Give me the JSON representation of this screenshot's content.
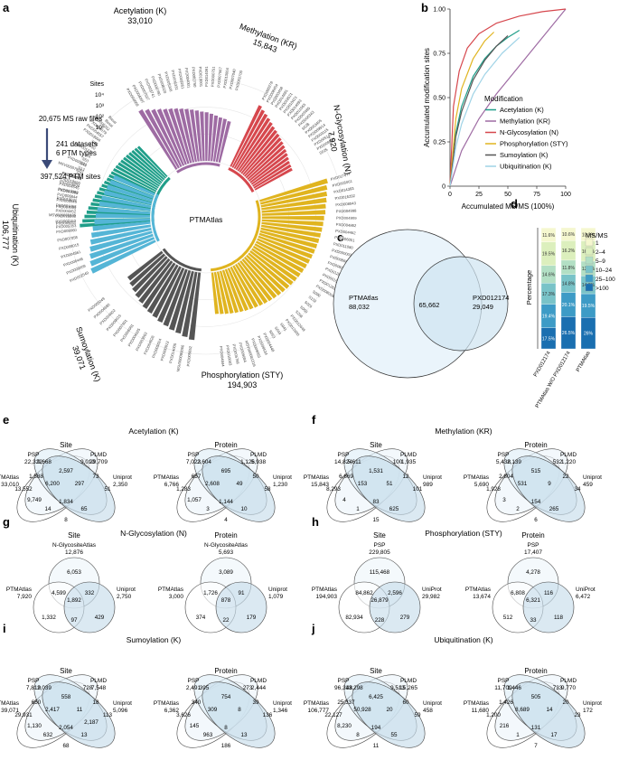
{
  "panel_labels": [
    "a",
    "b",
    "c",
    "d",
    "e",
    "f",
    "g",
    "h",
    "i",
    "j"
  ],
  "panel_a": {
    "center_label": "PTMAtlas",
    "flow": [
      "20,675 MS raw files",
      "241 datasets",
      "6 PTM types",
      "397,524 PTM sites"
    ],
    "sites_axis": {
      "label": "Sites",
      "ticks": [
        "10⁴",
        "10³",
        "10²",
        "10¹"
      ]
    },
    "groups": [
      {
        "name": "Acetylation (K)",
        "total": "33,010",
        "color": "#1f9e89",
        "datasets": [
          "PXD005353",
          "PXD002153",
          "PXD018868",
          "PXD004452",
          "PXD001058",
          "PXD004545",
          "PXD006844",
          "PXD013089",
          "PXD004545",
          "PXD018660",
          "PXD008009",
          "S30",
          "S17",
          "S43",
          "S53",
          "S24",
          "PXD001371",
          "S50",
          "S85",
          "PXD019994",
          "PXD004557",
          "PXD006079",
          "PXD005252",
          "Basal",
          "Basal"
        ],
        "heights": [
          1.0,
          0.96,
          0.93,
          0.9,
          0.88,
          0.85,
          0.83,
          0.81,
          0.79,
          0.77,
          0.75,
          0.73,
          0.71,
          0.7,
          0.69,
          0.68,
          0.67,
          0.66,
          0.65,
          0.64,
          0.63,
          0.62,
          0.61,
          0.6,
          0.59
        ]
      },
      {
        "name": "Methylation (KR)",
        "total": "15,843",
        "color": "#9e6ba3",
        "datasets": [
          "PXD004009",
          "PXD004007",
          "PXD007637",
          "PXD003741",
          "PXD000780",
          "PXD008020",
          "PXD005306",
          "PXD006331",
          "PXD009261",
          "PXD004001",
          "PXD002760",
          "PXD010001",
          "PXD014091",
          "PXD000751",
          "PXD007067",
          "PXD013004",
          "PXD007040",
          "PXD002700"
        ],
        "heights": [
          0.98,
          0.94,
          0.9,
          0.87,
          0.84,
          0.82,
          0.8,
          0.78,
          0.76,
          0.74,
          0.72,
          0.7,
          0.69,
          0.67,
          0.65,
          0.63,
          0.62,
          0.6
        ]
      },
      {
        "name": "N-Glycosylation (N)",
        "total": "7,920",
        "color": "#d6474d",
        "datasets": [
          "PXD000278",
          "PXD008454",
          "PXD003458",
          "PXD014691",
          "PXD019521",
          "PXD010421",
          "PXD014093",
          "PXD011565",
          "PXD003485",
          "PXD006343",
          "S028",
          "PXD003405",
          "PXD009914",
          "PXD003115",
          "PXD005143",
          "PXD009090",
          "S025"
        ],
        "heights": [
          0.96,
          0.92,
          0.89,
          0.86,
          0.83,
          0.8,
          0.78,
          0.76,
          0.74,
          0.72,
          0.7,
          0.68,
          0.66,
          0.64,
          0.62,
          0.61,
          0.6
        ]
      },
      {
        "name": "Phosphorylation (STY)",
        "total": "194,903",
        "color": "#e0b41f",
        "datasets": [
          "PXD017677",
          "PXD005061",
          "PXD014393",
          "PXD016292",
          "PXD008043",
          "PXD004998",
          "PXD004909",
          "PXD004862",
          "PXD004462",
          "PXD006051",
          "PXD011080",
          "PXD000003",
          "PXD008607",
          "PXD006006",
          "PXD012640",
          "PXD001550",
          "PXD012631",
          "PXD008004",
          "S090",
          "S132",
          "S024",
          "S050",
          "S204",
          "PXD012648",
          "PXD012600",
          "S041",
          "S044",
          "S053",
          "PXD004448",
          "PXD008534",
          "PXD009063",
          "MSV000081516",
          "PXD009084",
          "PXD005766",
          "PXD010003",
          "PXD004844"
        ],
        "heights": [
          1.0,
          0.97,
          0.95,
          0.93,
          0.91,
          0.9,
          0.88,
          0.87,
          0.86,
          0.85,
          0.84,
          0.83,
          0.82,
          0.81,
          0.8,
          0.79,
          0.78,
          0.77,
          0.76,
          0.75,
          0.74,
          0.73,
          0.72,
          0.71,
          0.7,
          0.69,
          0.68,
          0.67,
          0.66,
          0.65,
          0.64,
          0.63,
          0.62,
          0.61,
          0.6,
          0.59
        ]
      },
      {
        "name": "Sumoylation (K)",
        "total": "39,071",
        "color": "#555555",
        "datasets": [
          "PXD005652",
          "MSV000080066",
          "PXD014005",
          "PXD000913",
          "PXD005024",
          "PXD004826",
          "PXD003863",
          "PXD004925",
          "PXD006081",
          "PXD007901",
          "PXD009015",
          "PXD004602",
          "PXD004680",
          "PXD005049"
        ],
        "heights": [
          0.96,
          0.93,
          0.9,
          0.88,
          0.85,
          0.83,
          0.8,
          0.78,
          0.76,
          0.73,
          0.7,
          0.67,
          0.64,
          0.61
        ]
      },
      {
        "name": "Ubiquitination (K)",
        "total": "106,777",
        "color": "#54b5d6",
        "datasets": [
          "PXD002549",
          "PXD009009",
          "PXD006448",
          "PXD004861",
          "PXD008015",
          "PXD007058",
          "PXD008060",
          "PXD005011",
          "MSV000081936",
          "PXD007003",
          "PXD010031",
          "PXD007005",
          "PXD019834",
          "PXD011471",
          "MSV000079057",
          "PXD000201"
        ],
        "heights": [
          1.0,
          0.97,
          0.94,
          0.91,
          0.88,
          0.85,
          0.82,
          0.79,
          0.77,
          0.75,
          0.73,
          0.71,
          0.69,
          0.67,
          0.65,
          0.63
        ]
      }
    ]
  },
  "chart_data": [
    {
      "type": "line",
      "panel": "b",
      "xlabel": "Accumulated MS/MS (100%)",
      "ylabel": "Accumulated modification sites",
      "xlim": [
        0,
        100
      ],
      "ylim": [
        0,
        1.0
      ],
      "xticks": [
        "0",
        "25",
        "50",
        "75",
        "100"
      ],
      "yticks": [
        "0",
        "0.25",
        "0.50",
        "0.75",
        "1.00"
      ],
      "legend_title": "Modification",
      "legend_position": "center-right",
      "series": [
        {
          "name": "Acetylation (K)",
          "color": "#1f9e89",
          "x": [
            0,
            5,
            10,
            20,
            30,
            40,
            50,
            60
          ],
          "y": [
            0,
            0.3,
            0.45,
            0.62,
            0.72,
            0.79,
            0.84,
            0.88
          ]
        },
        {
          "name": "Methylation (KR)",
          "color": "#9e6ba3",
          "x": [
            0,
            10,
            25,
            40,
            55,
            70,
            85,
            100
          ],
          "y": [
            0,
            0.2,
            0.38,
            0.52,
            0.64,
            0.76,
            0.88,
            1.0
          ]
        },
        {
          "name": "N-Glycosylation (N)",
          "color": "#d6474d",
          "x": [
            0,
            3,
            8,
            15,
            25,
            40,
            60,
            80,
            100
          ],
          "y": [
            0,
            0.45,
            0.65,
            0.78,
            0.86,
            0.92,
            0.96,
            0.985,
            1.0
          ]
        },
        {
          "name": "Phosphorylation (STY)",
          "color": "#e0b41f",
          "x": [
            0,
            5,
            10,
            20,
            30,
            38
          ],
          "y": [
            0,
            0.38,
            0.55,
            0.72,
            0.82,
            0.87
          ]
        },
        {
          "name": "Sumoylation (K)",
          "color": "#555555",
          "x": [
            0,
            5,
            10,
            20,
            30,
            40,
            50
          ],
          "y": [
            0,
            0.28,
            0.42,
            0.6,
            0.71,
            0.79,
            0.85
          ]
        },
        {
          "name": "Ubiquitination (K)",
          "color": "#9fd3e6",
          "x": [
            0,
            5,
            10,
            20,
            30,
            45,
            60
          ],
          "y": [
            0,
            0.22,
            0.35,
            0.52,
            0.63,
            0.75,
            0.84
          ]
        }
      ]
    },
    {
      "type": "venn",
      "panel": "c",
      "sets": [
        "PTMAtlas",
        "PXD012174"
      ],
      "only_a": "88,032",
      "only_b": "29,049",
      "overlap": "65,662"
    },
    {
      "type": "bar",
      "panel": "d",
      "stacked": true,
      "ylabel": "Percentage",
      "categories": [
        "PXD012174",
        "PTMAtlas W/O PXD012174",
        "PTMAtlas"
      ],
      "legend_title": "MS/MS",
      "legend_position": "right",
      "series": [
        {
          "name": ">100",
          "color": "#1a6fb0",
          "values": [
            17.5,
            26.5,
            26
          ]
        },
        {
          "name": "25–100",
          "color": "#3d9bc6",
          "values": [
            19.4,
            20.1,
            19.5
          ]
        },
        {
          "name": "10–24",
          "color": "#79c3c8",
          "values": [
            17.3,
            14.8,
            14.8
          ]
        },
        {
          "name": "5–9",
          "color": "#b2dfc4",
          "values": [
            14.6,
            11.8,
            12.1
          ]
        },
        {
          "name": "2–4",
          "color": "#dcefbd",
          "values": [
            19.5,
            16.2,
            16.6
          ]
        },
        {
          "name": "1",
          "color": "#f5f7cf",
          "values": [
            11.6,
            10.6,
            10.9
          ]
        }
      ],
      "labels": [
        [
          "17.5%",
          "19.4%",
          "17.3%",
          "14.6%",
          "19.5%",
          "11.6%"
        ],
        [
          "26.5%",
          "20.1%",
          "14.8%",
          "11.8%",
          "16.2%",
          "10.6%"
        ],
        [
          "26%",
          "19.5%",
          "14.8%",
          "12.1%",
          "16.6%",
          "10.9%"
        ]
      ]
    }
  ],
  "venns": {
    "e": {
      "title": "Acetylation (K)",
      "site": {
        "title": "Site",
        "sets": [
          {
            "name": "PTMAtlas",
            "count": "33,010"
          },
          {
            "name": "PSP",
            "count": "22,322"
          },
          {
            "name": "PLMD",
            "count": "29,709"
          },
          {
            "name": "Uniprot",
            "count": "2,350"
          }
        ],
        "r": [
          "13,552",
          "9,668",
          "9,010",
          "51",
          "1,588",
          "2,597",
          "297",
          "6,200",
          "9,749",
          "14",
          "1,834",
          "65",
          "73",
          "8"
        ]
      },
      "protein": {
        "title": "Protein",
        "sets": [
          {
            "name": "PTMAtlas",
            "count": "6,766"
          },
          {
            "name": "PSP",
            "count": "7,023"
          },
          {
            "name": "PLMD",
            "count": "5,938"
          },
          {
            "name": "Uniprot",
            "count": "1,230"
          }
        ],
        "r": [
          "1,283",
          "2,604",
          "1,126",
          "58",
          "657",
          "695",
          "49",
          "2,608",
          "1,057",
          "3",
          "1,144",
          "10",
          "50",
          "4"
        ]
      }
    },
    "f": {
      "title": "Methylation (KR)",
      "site": {
        "title": "Site",
        "sets": [
          {
            "name": "PTMAtlas",
            "count": "15,843"
          },
          {
            "name": "PSP",
            "count": "14,824"
          },
          {
            "name": "PLMD",
            "count": "1,935"
          },
          {
            "name": "Uniprot",
            "count": "989"
          }
        ],
        "r": [
          "8,293",
          "5,611",
          "100",
          "101",
          "6,669",
          "1,531",
          "51",
          "153",
          "4",
          "1",
          "83",
          "625",
          "12",
          "15"
        ]
      },
      "protein": {
        "title": "Protein",
        "sets": [
          {
            "name": "PTMAtlas",
            "count": "5,690"
          },
          {
            "name": "PSP",
            "count": "5,438"
          },
          {
            "name": "PLMD",
            "count": "1,220"
          },
          {
            "name": "Uniprot",
            "count": "459"
          }
        ],
        "r": [
          "1,928",
          "2,139",
          "532",
          "34",
          "2,804",
          "515",
          "9",
          "531",
          "3",
          "2",
          "154",
          "265",
          "22",
          "6"
        ]
      }
    },
    "g": {
      "title": "N-Glycosylation (N)",
      "site": {
        "title": "Site",
        "sets": [
          {
            "name": "N-GlycositeAtlas",
            "count": "12,876"
          },
          {
            "name": "PTMAtlas",
            "count": "7,920"
          },
          {
            "name": "Uniprot",
            "count": "2,750"
          }
        ],
        "r": [
          "6,053",
          "1,332",
          "429",
          "4,599",
          "332",
          "97",
          "1,892"
        ]
      },
      "protein": {
        "title": "Protein",
        "sets": [
          {
            "name": "N-GlycositeAtlas",
            "count": "5,693"
          },
          {
            "name": "PTMAtlas",
            "count": "3,000"
          },
          {
            "name": "Uniprot",
            "count": "1,079"
          }
        ],
        "r": [
          "3,089",
          "374",
          "179",
          "1,726",
          "91",
          "22",
          "878"
        ]
      }
    },
    "h": {
      "title": "Phosphorylation (STY)",
      "site": {
        "title": "Site",
        "sets": [
          {
            "name": "PSP",
            "count": "229,805"
          },
          {
            "name": "PTMAtlas",
            "count": "194,903"
          },
          {
            "name": "UniProt",
            "count": "29,982"
          }
        ],
        "r": [
          "115,468",
          "82,934",
          "279",
          "84,862",
          "2,596",
          "228",
          "26,879"
        ]
      },
      "protein": {
        "title": "Protein",
        "sets": [
          {
            "name": "PSP",
            "count": "17,407"
          },
          {
            "name": "PTMAtlas",
            "count": "13,674"
          },
          {
            "name": "UniProt",
            "count": "6,472"
          }
        ],
        "r": [
          "4,278",
          "512",
          "118",
          "6,808",
          "116",
          "33",
          "6,321"
        ]
      }
    },
    "i": {
      "title": "Sumoylation (K)",
      "site": {
        "title": "Site",
        "sets": [
          {
            "name": "PTMAtlas",
            "count": "39,071"
          },
          {
            "name": "PSP",
            "count": "7,819"
          },
          {
            "name": "PLMD",
            "count": "7,548"
          },
          {
            "name": "Uniprot",
            "count": "5,096"
          }
        ],
        "r": [
          "29,931",
          "2,039",
          "728",
          "113",
          "650",
          "558",
          "11",
          "2,417",
          "1,130",
          "632",
          "2,054",
          "13",
          "18",
          "68",
          "2,187"
        ]
      },
      "protein": {
        "title": "Protein",
        "sets": [
          {
            "name": "PTMAtlas",
            "count": "6,362"
          },
          {
            "name": "PSP",
            "count": "2,491"
          },
          {
            "name": "PLMD",
            "count": "2,444"
          },
          {
            "name": "Uniprot",
            "count": "1,346"
          }
        ],
        "r": [
          "3,626",
          "395",
          "273",
          "136",
          "340",
          "754",
          "8",
          "309",
          "145",
          "963",
          "8",
          "13",
          "39",
          "186"
        ]
      }
    },
    "j": {
      "title": "Ubiquitination (K)",
      "site": {
        "title": "Site",
        "sets": [
          {
            "name": "PTMAtlas",
            "count": "106,777"
          },
          {
            "name": "PSP",
            "count": "96,348"
          },
          {
            "name": "PLMD",
            "count": "15,265"
          },
          {
            "name": "Uniprot",
            "count": "458"
          }
        ],
        "r": [
          "22,127",
          "13,298",
          "9,513",
          "59",
          "25,337",
          "6,425",
          "20",
          "50,928",
          "8,230",
          "8",
          "194",
          "55",
          "60",
          "11"
        ]
      },
      "protein": {
        "title": "Protein",
        "sets": [
          {
            "name": "PTMAtlas",
            "count": "11,680"
          },
          {
            "name": "PSP",
            "count": "11,709"
          },
          {
            "name": "PLMD",
            "count": "9,770"
          },
          {
            "name": "Uniprot",
            "count": "172"
          }
        ],
        "r": [
          "1,200",
          "1,446",
          "733",
          "23",
          "1,426",
          "505",
          "14",
          "8,689",
          "216",
          "1",
          "131",
          "17",
          "20",
          "7"
        ]
      }
    }
  }
}
